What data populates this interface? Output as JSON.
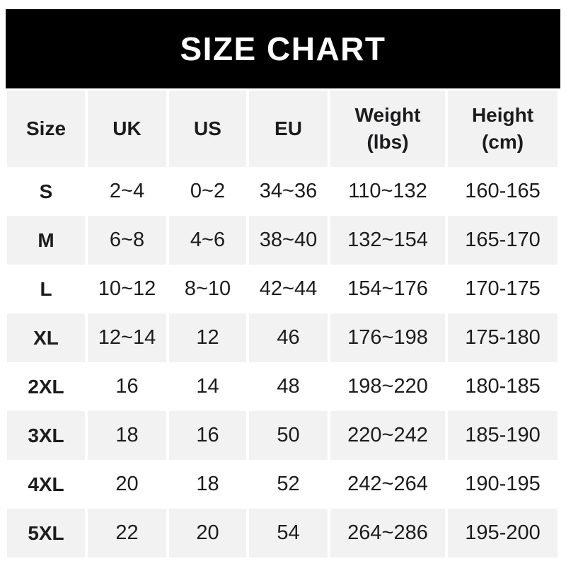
{
  "chart_data": {
    "type": "table",
    "title": "SIZE CHART",
    "columns": [
      {
        "label": "Size"
      },
      {
        "label": "UK"
      },
      {
        "label": "US"
      },
      {
        "label": "EU"
      },
      {
        "label": "Weight",
        "sublabel": "(lbs)"
      },
      {
        "label": "Height",
        "sublabel": "(cm)"
      }
    ],
    "rows": [
      [
        "S",
        "2~4",
        "0~2",
        "34~36",
        "110~132",
        "160-165"
      ],
      [
        "M",
        "6~8",
        "4~6",
        "38~40",
        "132~154",
        "165-170"
      ],
      [
        "L",
        "10~12",
        "8~10",
        "42~44",
        "154~176",
        "170-175"
      ],
      [
        "XL",
        "12~14",
        "12",
        "46",
        "176~198",
        "175-180"
      ],
      [
        "2XL",
        "16",
        "14",
        "48",
        "198~220",
        "180-185"
      ],
      [
        "3XL",
        "18",
        "16",
        "50",
        "220~242",
        "185-190"
      ],
      [
        "4XL",
        "20",
        "18",
        "52",
        "242~264",
        "190-195"
      ],
      [
        "5XL",
        "22",
        "20",
        "54",
        "264~286",
        "195-200"
      ]
    ],
    "layout": {
      "stripe_style": "alternating-rows",
      "header_position": "top"
    }
  },
  "colors": {
    "title_bar_bg": "#000000",
    "title_text": "#ffffff",
    "alt_row_bg": "#f2f2f2",
    "row_bg": "#ffffff",
    "cell_text": "#1c1c1e"
  }
}
